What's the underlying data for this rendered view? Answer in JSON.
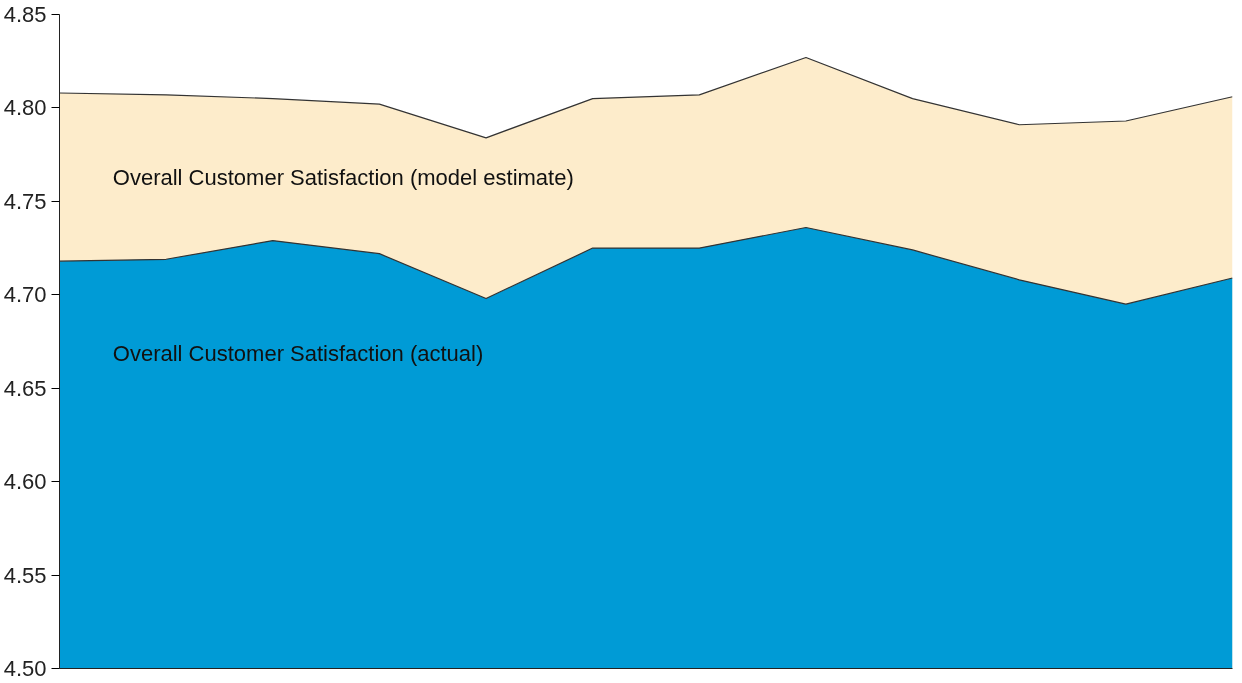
{
  "chart_data": {
    "type": "area",
    "categories": [
      null,
      null,
      null,
      null,
      null,
      null,
      null,
      null,
      null,
      null,
      null,
      null
    ],
    "series": [
      {
        "name": "Overall Customer Satisfaction (model estimate)",
        "color": "#fdeccb",
        "values": [
          4.808,
          4.807,
          4.805,
          4.802,
          4.784,
          4.805,
          4.807,
          4.827,
          4.805,
          4.791,
          4.793,
          4.806
        ]
      },
      {
        "name": "Overall Customer Satisfaction (actual)",
        "color": "#009bd6",
        "values": [
          4.718,
          4.719,
          4.729,
          4.722,
          4.698,
          4.725,
          4.725,
          4.736,
          4.724,
          4.708,
          4.695,
          4.709
        ]
      }
    ],
    "ylim": [
      4.5,
      4.85
    ],
    "yticks": [
      {
        "value": 4.5,
        "label": "4.50"
      },
      {
        "value": 4.55,
        "label": "4.55"
      },
      {
        "value": 4.6,
        "label": "4.60"
      },
      {
        "value": 4.65,
        "label": "4.65"
      },
      {
        "value": 4.7,
        "label": "4.70"
      },
      {
        "value": 4.75,
        "label": "4.75"
      },
      {
        "value": 4.8,
        "label": "4.80"
      },
      {
        "value": 4.85,
        "label": "4.85"
      }
    ],
    "tick_labels": "y"
  }
}
